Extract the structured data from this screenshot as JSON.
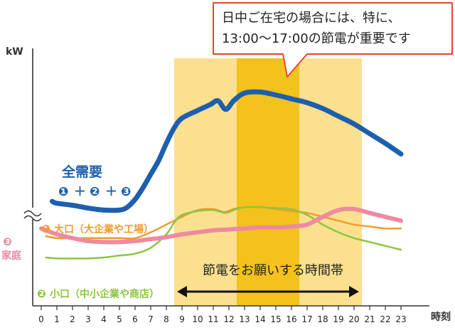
{
  "callout": {
    "line1": "日中ご在宅の場合には、特に、",
    "line2": "13:00〜17:00の節電が重要です"
  },
  "colors": {
    "total": "#1d5fae",
    "large": "#f29a2e",
    "small": "#8cc63f",
    "home": "#ee8aa0",
    "band_light": "#fbe08f",
    "band_dark": "#f4c21c",
    "callout_border": "#e8452c",
    "axis": "#333333"
  },
  "band_label": "節電をお願いする時間帯",
  "chart_data": {
    "type": "line",
    "ylabel": "kW",
    "xlabel": "時刻",
    "x": [
      0,
      1,
      2,
      3,
      4,
      5,
      6,
      7,
      8,
      9,
      10,
      11,
      12,
      13,
      14,
      15,
      16,
      17,
      18,
      19,
      20,
      21,
      22,
      23
    ],
    "xlim": [
      0,
      23
    ],
    "ylim": [
      0,
      100
    ],
    "y_axis_break": true,
    "highlight_ranges": [
      {
        "from": 8.5,
        "to": 20.5,
        "style": "light"
      },
      {
        "from": 12.5,
        "to": 16.5,
        "style": "dark"
      }
    ],
    "series": [
      {
        "key": "total",
        "name": "全需要",
        "sub": [
          "❶",
          "＋",
          "❷",
          "＋",
          "❸"
        ],
        "color_key": "total",
        "width": 7,
        "points": [
          [
            0.7,
            54
          ],
          [
            1,
            53
          ],
          [
            2,
            52
          ],
          [
            3,
            50.5
          ],
          [
            4,
            49.5
          ],
          [
            5,
            49.5
          ],
          [
            5.5,
            51
          ],
          [
            6,
            55
          ],
          [
            6.5,
            61
          ],
          [
            7,
            68
          ],
          [
            7.5,
            75
          ],
          [
            8,
            84
          ],
          [
            8.5,
            92
          ],
          [
            9,
            97
          ],
          [
            10,
            101
          ],
          [
            10.8,
            104
          ],
          [
            11.3,
            106
          ],
          [
            11.8,
            101.5
          ],
          [
            12.3,
            106
          ],
          [
            13,
            110
          ],
          [
            14,
            110.5
          ],
          [
            15,
            109
          ],
          [
            16,
            107
          ],
          [
            17,
            105
          ],
          [
            18,
            102
          ],
          [
            19,
            98
          ],
          [
            20,
            94
          ],
          [
            21,
            89
          ],
          [
            22,
            84
          ],
          [
            23,
            78.5
          ]
        ]
      },
      {
        "key": "large",
        "name": "大口（大企業や工場）",
        "marker": "❶",
        "color_key": "large",
        "width": 2.5,
        "points": [
          [
            0.3,
            36
          ],
          [
            1,
            35
          ],
          [
            2,
            35
          ],
          [
            3,
            35
          ],
          [
            4,
            35
          ],
          [
            5,
            35
          ],
          [
            6,
            35
          ],
          [
            7,
            38
          ],
          [
            8,
            42
          ],
          [
            9,
            46
          ],
          [
            10,
            49.5
          ],
          [
            11,
            50
          ],
          [
            11.7,
            48.5
          ],
          [
            12.3,
            50
          ],
          [
            13,
            51
          ],
          [
            14,
            51
          ],
          [
            15,
            50
          ],
          [
            16,
            49
          ],
          [
            17,
            48
          ],
          [
            18,
            46
          ],
          [
            19,
            44
          ],
          [
            20,
            42
          ],
          [
            21,
            41
          ],
          [
            22,
            40
          ],
          [
            23,
            40
          ]
        ]
      },
      {
        "key": "small",
        "name": "小口（中小企業や商店）",
        "marker": "❷",
        "color_key": "small",
        "width": 2.5,
        "points": [
          [
            0.3,
            25
          ],
          [
            1,
            24.5
          ],
          [
            2,
            24.5
          ],
          [
            3,
            24.5
          ],
          [
            4,
            25
          ],
          [
            5,
            26
          ],
          [
            6,
            27
          ],
          [
            7,
            30
          ],
          [
            8,
            37
          ],
          [
            8.5,
            43
          ],
          [
            9,
            47
          ],
          [
            10,
            49
          ],
          [
            11,
            49.5
          ],
          [
            11.8,
            48
          ],
          [
            12.3,
            49.5
          ],
          [
            13,
            51
          ],
          [
            14,
            51
          ],
          [
            15,
            50.5
          ],
          [
            16,
            50
          ],
          [
            17,
            47
          ],
          [
            18,
            42
          ],
          [
            19,
            38
          ],
          [
            20,
            35
          ],
          [
            21,
            33
          ],
          [
            22,
            31
          ],
          [
            23,
            29
          ]
        ]
      },
      {
        "key": "home",
        "name": "家庭",
        "marker": "❸",
        "color_key": "home",
        "width": 6,
        "points": [
          [
            0,
            40
          ],
          [
            1,
            37
          ],
          [
            2,
            35
          ],
          [
            3,
            33.5
          ],
          [
            4,
            33
          ],
          [
            5,
            33
          ],
          [
            6,
            33.5
          ],
          [
            7,
            34.5
          ],
          [
            8,
            35.5
          ],
          [
            9,
            37
          ],
          [
            10,
            38
          ],
          [
            11,
            39
          ],
          [
            12,
            39.5
          ],
          [
            13,
            40
          ],
          [
            14,
            40.5
          ],
          [
            15,
            40.5
          ],
          [
            16,
            41
          ],
          [
            17,
            42
          ],
          [
            18,
            46
          ],
          [
            19,
            49.5
          ],
          [
            20,
            50
          ],
          [
            21,
            48
          ],
          [
            22,
            46
          ],
          [
            23,
            44
          ]
        ]
      }
    ]
  }
}
